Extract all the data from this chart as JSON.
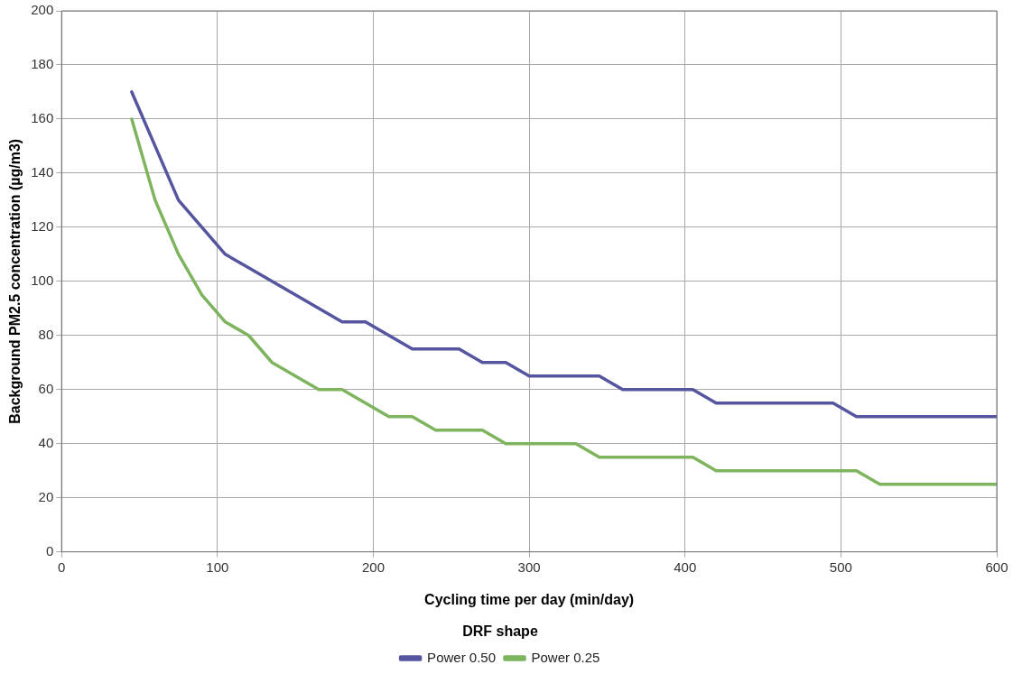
{
  "chart_data": {
    "type": "line",
    "xlabel": "Cycling time per day (min/day)",
    "ylabel": "Background PM2.5 concentration (µg/m3)",
    "legend_title": "DRF shape",
    "legend": "bottom",
    "grid": true,
    "marker": "none",
    "line_style": "solid",
    "xlim": [
      0,
      600
    ],
    "xticks": [
      0,
      100,
      200,
      300,
      400,
      500,
      600
    ],
    "ylim": [
      0,
      200
    ],
    "yticks": [
      0,
      20,
      40,
      60,
      80,
      100,
      120,
      140,
      160,
      180,
      200
    ],
    "x": [
      45,
      60,
      75,
      90,
      105,
      120,
      135,
      150,
      165,
      180,
      195,
      210,
      225,
      240,
      255,
      270,
      285,
      300,
      315,
      330,
      345,
      360,
      375,
      390,
      405,
      420,
      435,
      450,
      465,
      480,
      495,
      510,
      525,
      540,
      555,
      570,
      585,
      600
    ],
    "series": [
      {
        "name": "Power 0.50",
        "color": "#5555a0",
        "values": [
          170,
          150,
          130,
          120,
          110,
          105,
          100,
          95,
          90,
          85,
          85,
          80,
          75,
          75,
          75,
          70,
          70,
          65,
          65,
          65,
          65,
          60,
          60,
          60,
          60,
          55,
          55,
          55,
          55,
          55,
          55,
          50,
          50,
          50,
          50,
          50,
          50,
          50
        ]
      },
      {
        "name": "Power 0.25",
        "color": "#7fb45f",
        "values": [
          160,
          130,
          110,
          95,
          85,
          80,
          70,
          65,
          60,
          60,
          55,
          50,
          50,
          45,
          45,
          45,
          40,
          40,
          40,
          40,
          35,
          35,
          35,
          35,
          35,
          30,
          30,
          30,
          30,
          30,
          30,
          30,
          25,
          25,
          25,
          25,
          25,
          25
        ]
      }
    ]
  }
}
